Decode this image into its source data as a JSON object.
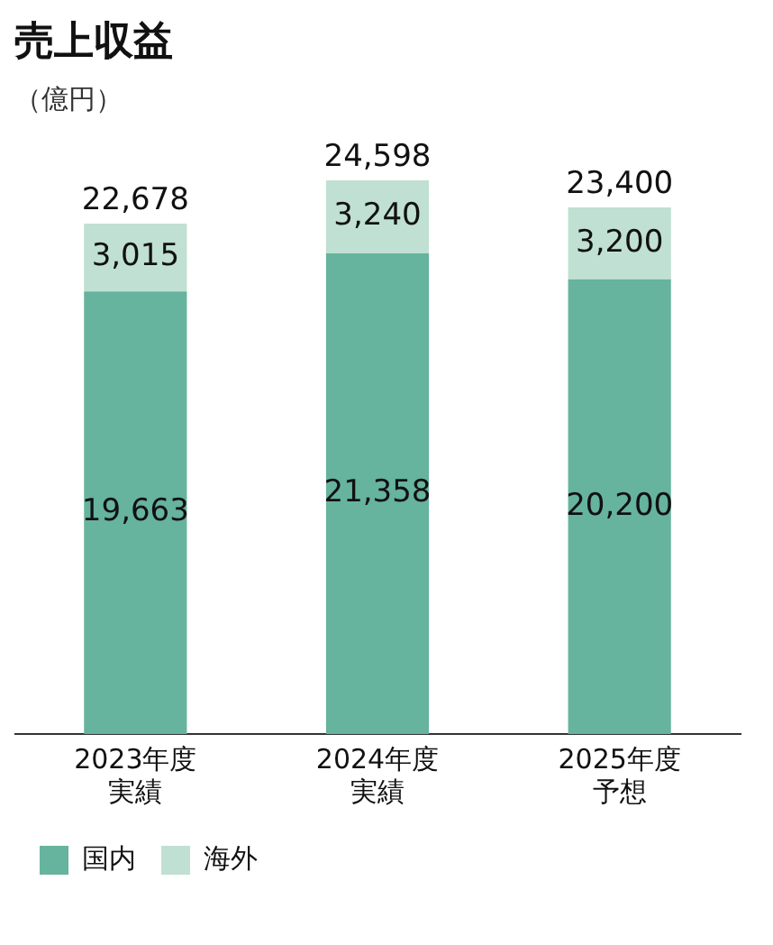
{
  "chart_data": {
    "type": "bar",
    "title": "売上収益",
    "subtitle": "（億円）",
    "categories": [
      "2023年度実績",
      "2024年度実績",
      "2025年度予想"
    ],
    "series": [
      {
        "name": "国内",
        "color": "#66b39e",
        "values": [
          19663,
          21358,
          20200
        ],
        "value_labels": [
          "19,663",
          "21,358",
          "20,200"
        ]
      },
      {
        "name": "海外",
        "color": "#bfe0d3",
        "values": [
          3015,
          3240,
          3200
        ],
        "value_labels": [
          "3,015",
          "3,240",
          "3,200"
        ]
      }
    ],
    "stacked": true,
    "totals": [
      "22,678",
      "24,598",
      "23,400"
    ],
    "tick_labels": "x",
    "grid": false,
    "legend": "bottom left"
  }
}
